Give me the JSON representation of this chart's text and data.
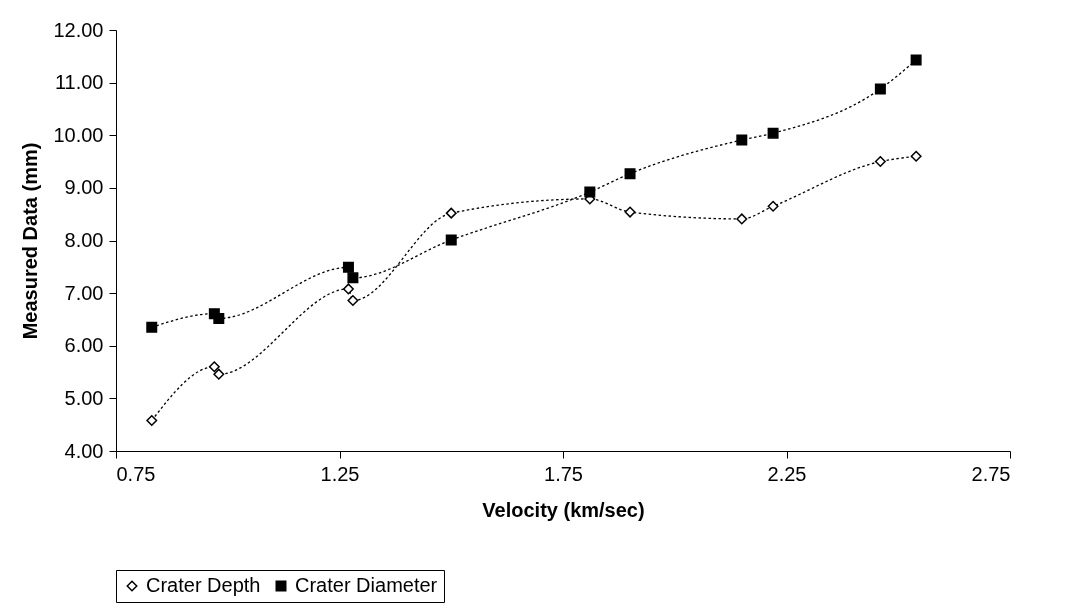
{
  "chart_data": {
    "type": "line",
    "xlabel": "Velocity (km/sec)",
    "ylabel": "Measured Data (mm)",
    "xlim": [
      0.75,
      2.75
    ],
    "xticks": [
      0.75,
      1.25,
      1.75,
      2.25,
      2.75
    ],
    "ylim": [
      4,
      12
    ],
    "yticks": [
      {
        "value": 4,
        "label": "4.00"
      },
      {
        "value": 5,
        "label": "5.00"
      },
      {
        "value": 6,
        "label": "6.00"
      },
      {
        "value": 7,
        "label": "7.00"
      },
      {
        "value": 8,
        "label": "8.00"
      },
      {
        "value": 9,
        "label": "9.00"
      },
      {
        "value": 10,
        "label": "10.00"
      },
      {
        "value": 11,
        "label": "11.00"
      },
      {
        "value": 12,
        "label": "12.00"
      }
    ],
    "grid": false,
    "legend": "bottom",
    "line_style": "dotted",
    "series": [
      {
        "name": "Crater Depth",
        "color": "#000000",
        "marker": "diamond",
        "x": [
          0.83,
          0.97,
          0.98,
          1.27,
          1.28,
          1.5,
          1.81,
          1.9,
          2.15,
          2.22,
          2.46,
          2.54
        ],
        "values": [
          4.58,
          5.6,
          5.46,
          7.08,
          6.86,
          8.52,
          8.79,
          8.54,
          8.41,
          8.65,
          9.5,
          9.6
        ]
      },
      {
        "name": "Crater Diameter",
        "color": "#000000",
        "marker": "square",
        "x": [
          0.83,
          0.97,
          0.98,
          1.27,
          1.28,
          1.5,
          1.81,
          1.9,
          2.15,
          2.22,
          2.46,
          2.54
        ],
        "values": [
          6.35,
          6.61,
          6.52,
          7.49,
          7.29,
          8.01,
          8.92,
          9.27,
          9.91,
          10.04,
          10.88,
          11.43
        ]
      }
    ]
  }
}
